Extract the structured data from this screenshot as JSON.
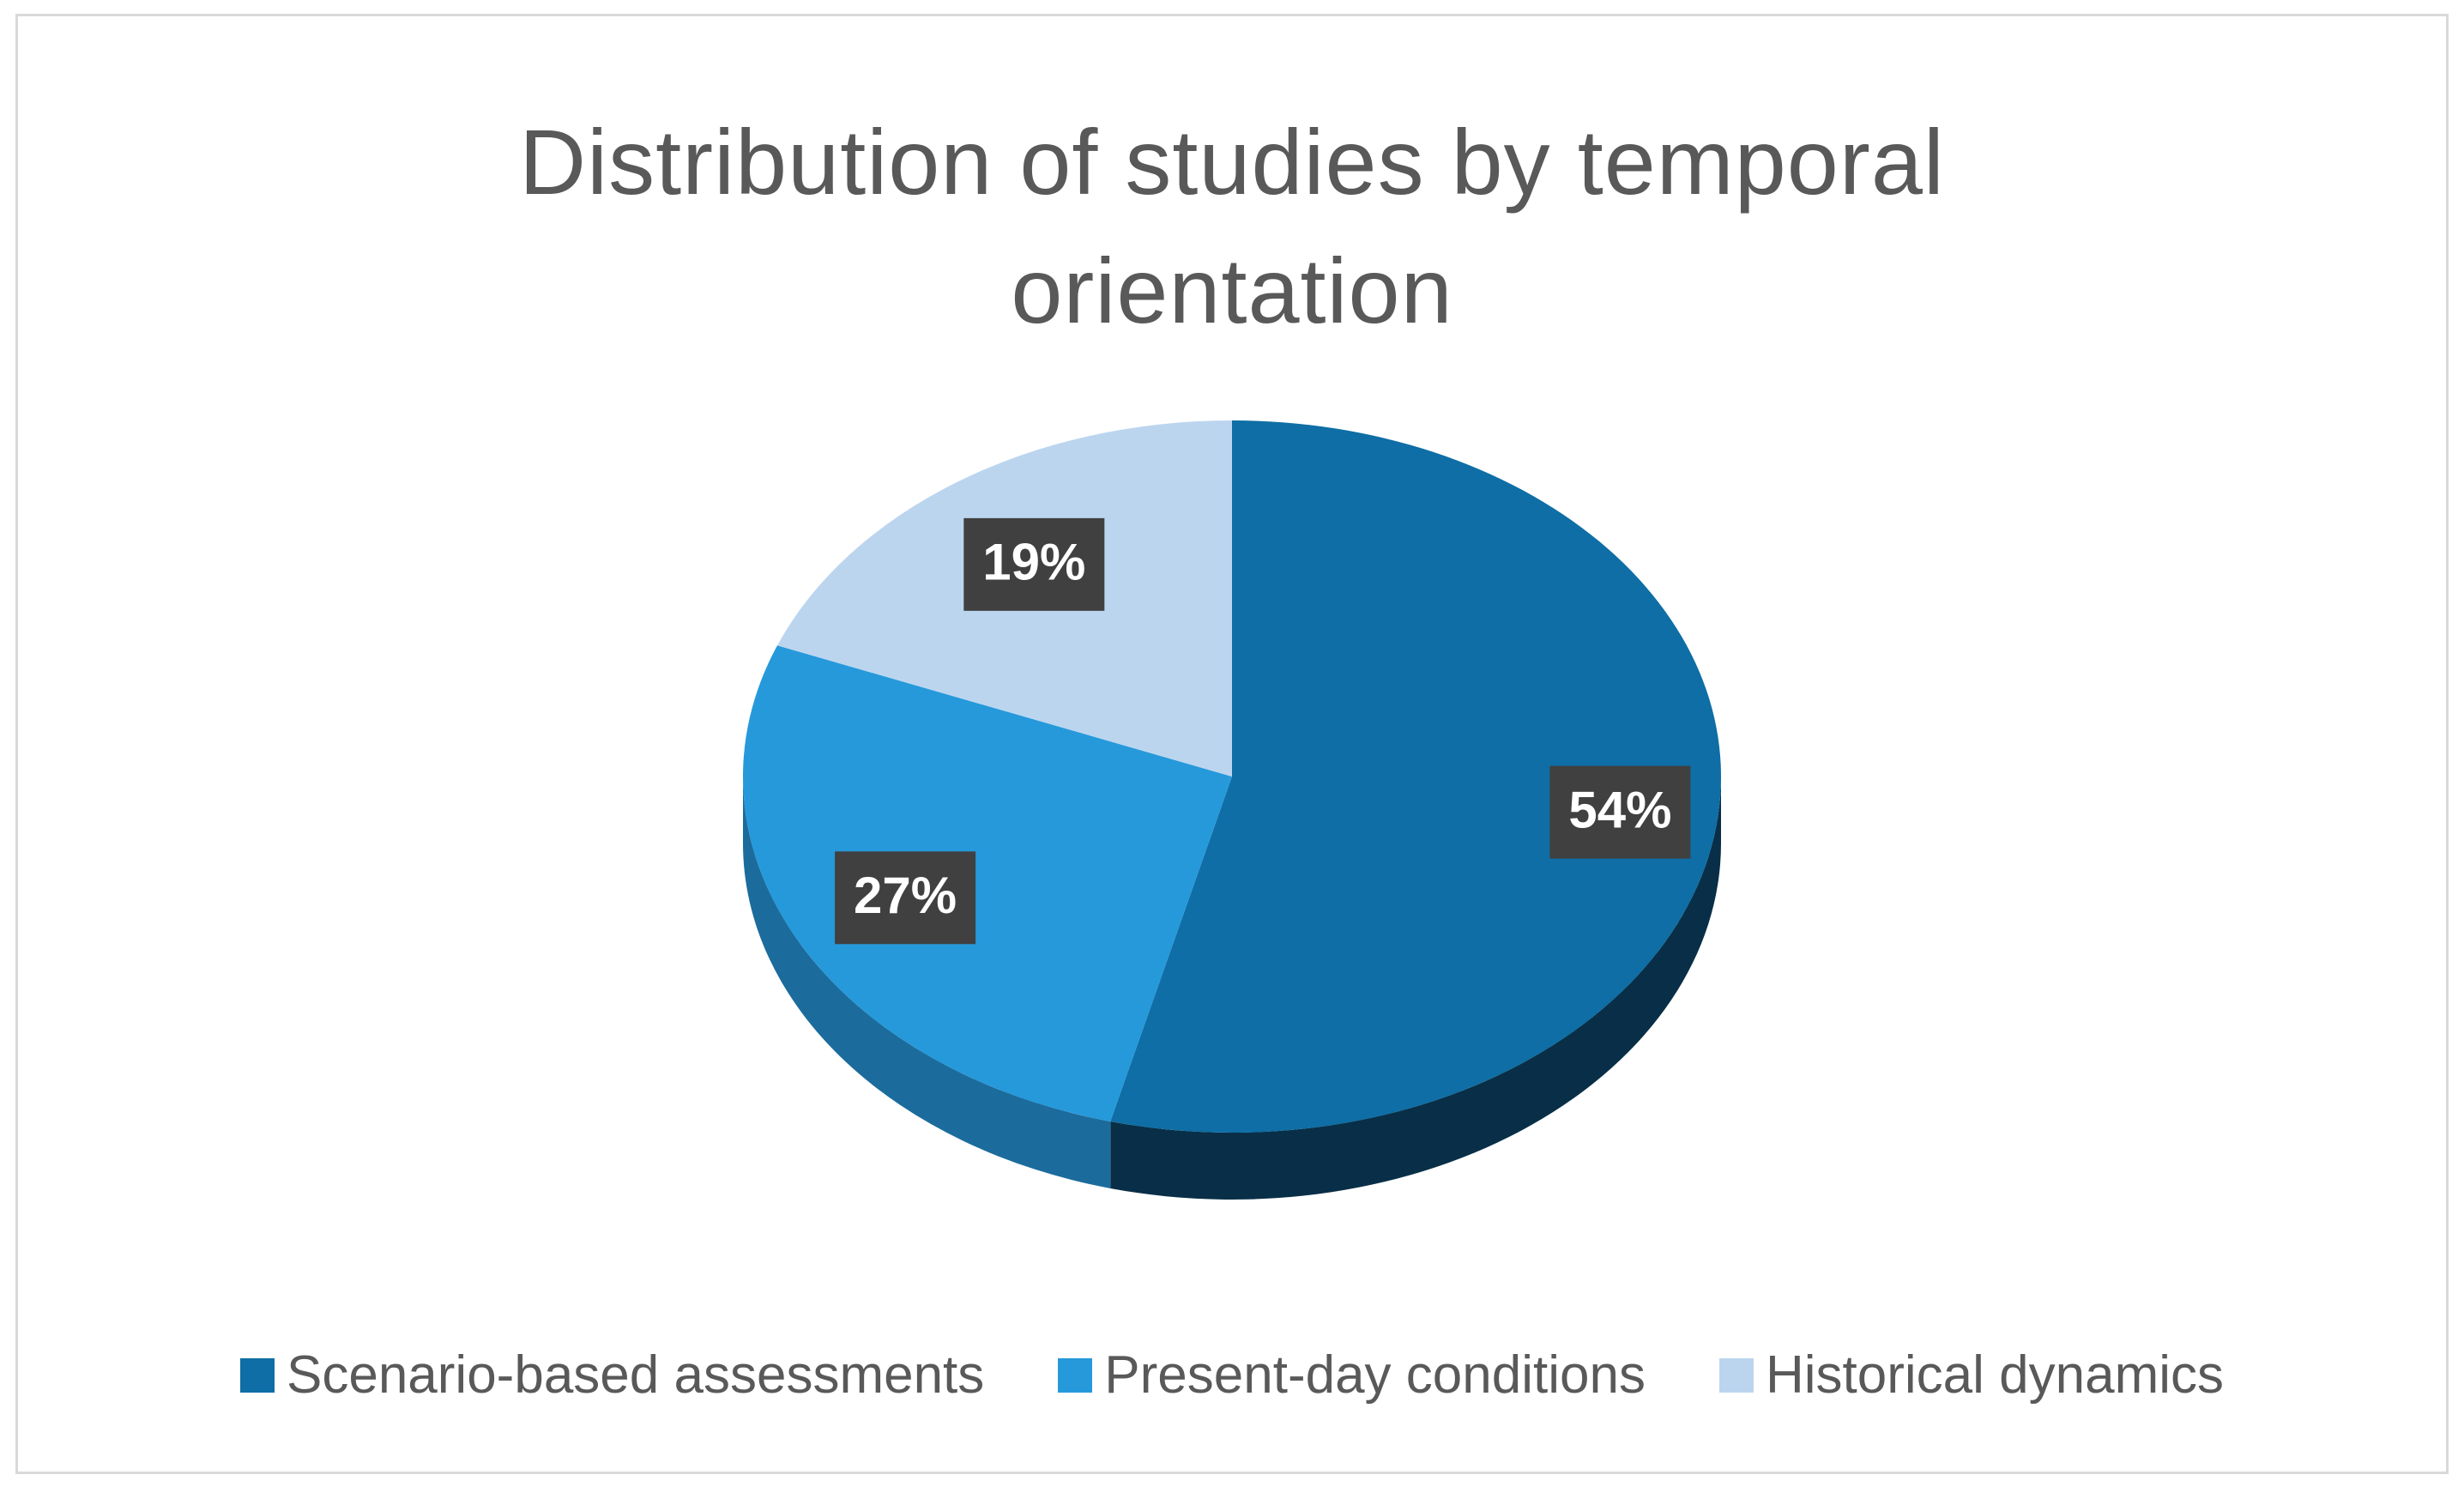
{
  "chart_data": {
    "type": "pie",
    "title": "Distribution of studies by temporal orientation",
    "title_lines": [
      "Distribution of studies by temporal",
      "orientation"
    ],
    "categories": [
      "Scenario-based assessments",
      "Present-day conditions",
      "Historical dynamics"
    ],
    "values": [
      54,
      27,
      19
    ],
    "data_labels": [
      "54%",
      "27%",
      "19%"
    ],
    "colors": [
      "#0e6ea5",
      "#2699db",
      "#bcd5ef"
    ],
    "side_colors": [
      "#082f47",
      "#1b6c9c",
      "#8aa6c2"
    ],
    "legend_position": "bottom",
    "style": "3d-pie"
  }
}
